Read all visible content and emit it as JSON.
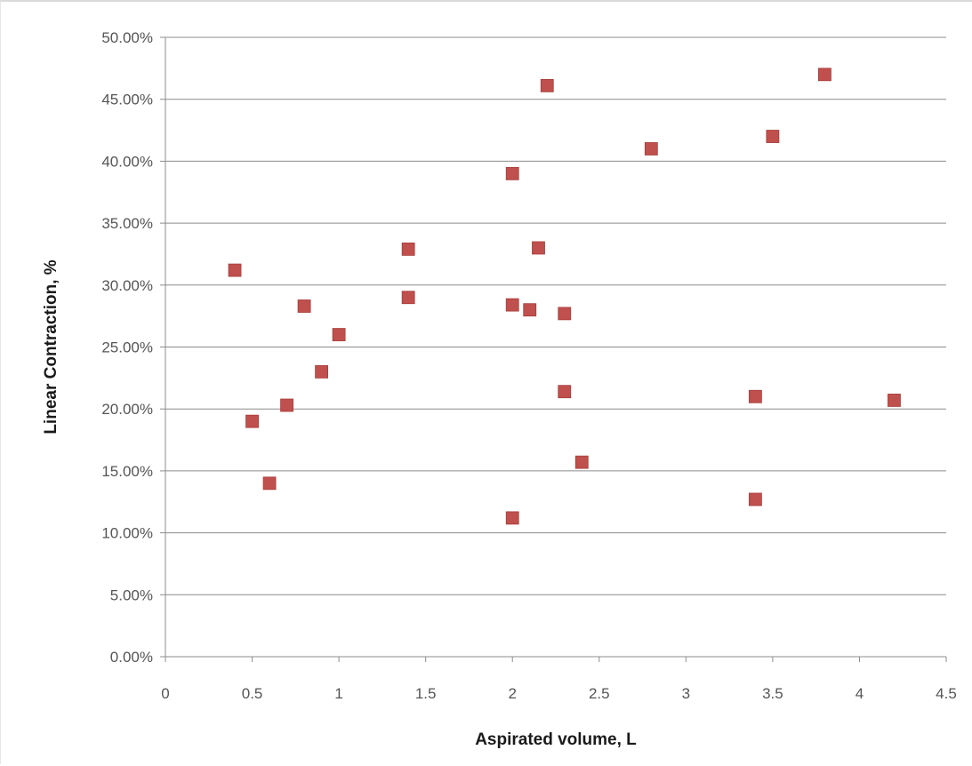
{
  "chart_data": {
    "type": "scatter",
    "title": "",
    "xlabel": "Aspirated volume, L",
    "ylabel": "Linear Contraction, %",
    "xlim": [
      0,
      4.5
    ],
    "ylim": [
      0,
      0.5
    ],
    "x_ticks": [
      0,
      0.5,
      1,
      1.5,
      2,
      2.5,
      3,
      3.5,
      4,
      4.5
    ],
    "x_tick_labels": [
      "0",
      "0.5",
      "1",
      "1.5",
      "2",
      "2.5",
      "3",
      "3.5",
      "4",
      "4.5"
    ],
    "y_ticks": [
      0,
      0.05,
      0.1,
      0.15,
      0.2,
      0.25,
      0.3,
      0.35,
      0.4,
      0.45,
      0.5
    ],
    "y_tick_labels": [
      "0.00%",
      "5.00%",
      "10.00%",
      "15.00%",
      "20.00%",
      "25.00%",
      "30.00%",
      "35.00%",
      "40.00%",
      "45.00%",
      "50.00%"
    ],
    "grid": "horizontal",
    "legend": "none",
    "marker_color": "#c0504d",
    "series": [
      {
        "points": [
          {
            "x": 0.4,
            "y": 0.312
          },
          {
            "x": 0.5,
            "y": 0.19
          },
          {
            "x": 0.6,
            "y": 0.14
          },
          {
            "x": 0.7,
            "y": 0.203
          },
          {
            "x": 0.8,
            "y": 0.283
          },
          {
            "x": 0.9,
            "y": 0.23
          },
          {
            "x": 1.0,
            "y": 0.26
          },
          {
            "x": 1.4,
            "y": 0.329
          },
          {
            "x": 1.4,
            "y": 0.29
          },
          {
            "x": 2.0,
            "y": 0.39
          },
          {
            "x": 2.0,
            "y": 0.284
          },
          {
            "x": 2.0,
            "y": 0.112
          },
          {
            "x": 2.1,
            "y": 0.28
          },
          {
            "x": 2.15,
            "y": 0.33
          },
          {
            "x": 2.2,
            "y": 0.461
          },
          {
            "x": 2.3,
            "y": 0.277
          },
          {
            "x": 2.3,
            "y": 0.214
          },
          {
            "x": 2.4,
            "y": 0.157
          },
          {
            "x": 2.8,
            "y": 0.41
          },
          {
            "x": 3.4,
            "y": 0.21
          },
          {
            "x": 3.4,
            "y": 0.127
          },
          {
            "x": 3.5,
            "y": 0.42
          },
          {
            "x": 3.8,
            "y": 0.47
          },
          {
            "x": 4.2,
            "y": 0.207
          }
        ]
      }
    ]
  }
}
